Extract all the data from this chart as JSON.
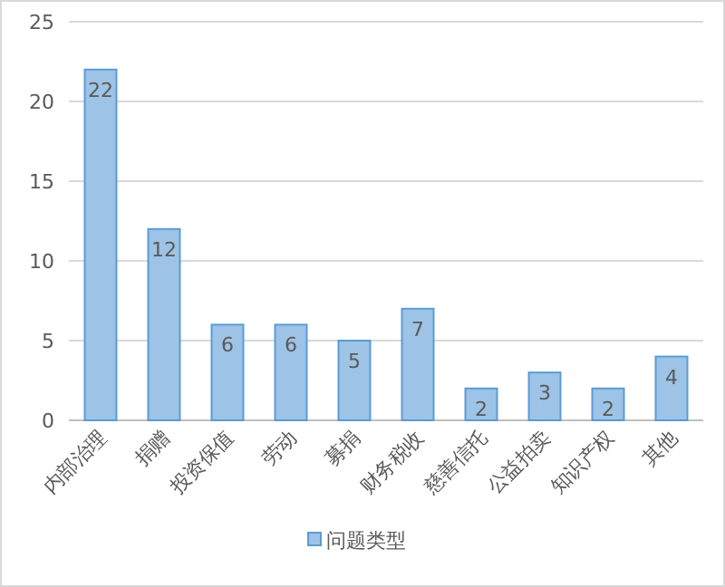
{
  "chart_data": {
    "type": "bar",
    "categories": [
      "内部治理",
      "捐赠",
      "投资保值",
      "劳动",
      "募捐",
      "财务税收",
      "慈善信托",
      "公益拍卖",
      "知识产权",
      "其他"
    ],
    "series": [
      {
        "name": "问题类型",
        "color": "#9dc3e6",
        "values": [
          22,
          12,
          6,
          6,
          5,
          7,
          2,
          3,
          2,
          4
        ]
      }
    ],
    "ylim": [
      0,
      25
    ],
    "yticks": [
      0,
      5,
      10,
      15,
      20,
      25
    ],
    "grid": "y",
    "legend": "bottom",
    "data_labels": true
  }
}
